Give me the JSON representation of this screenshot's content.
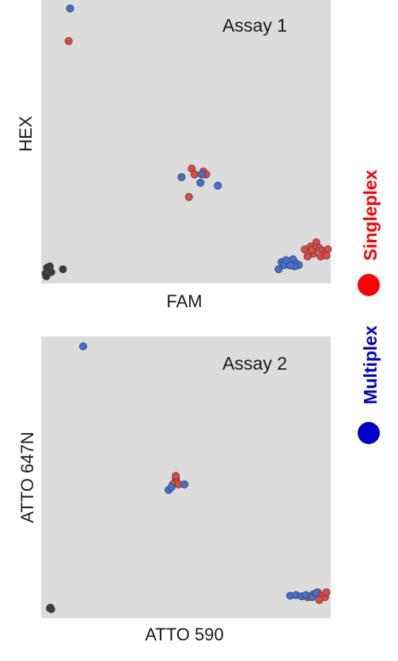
{
  "legend": {
    "items": [
      {
        "label": "Singleplex",
        "color": "#ff0000"
      },
      {
        "label": "Multiplex",
        "color": "#0000cc"
      }
    ]
  },
  "colors": {
    "panel_bg": "#dcdcdc",
    "singleplex": "#e8453c",
    "multiplex": "#3f6fd8",
    "negative": "#3a3a3a",
    "point_edge": "#444444"
  },
  "chart_data": [
    {
      "type": "scatter",
      "title": "Assay 1",
      "xlabel": "FAM",
      "ylabel": "HEX",
      "xlim": [
        0,
        100
      ],
      "ylim": [
        0,
        100
      ],
      "grid": false,
      "series": [
        {
          "name": "Singleplex",
          "color": "#e8453c",
          "points": [
            [
              9.5,
              85.5
            ],
            [
              52,
              40.5
            ],
            [
              53,
              38.5
            ],
            [
              56,
              39.5
            ],
            [
              57,
              38.5
            ],
            [
              51,
              30.5
            ],
            [
              91,
              12
            ],
            [
              93,
              13
            ],
            [
              95,
              14.5
            ],
            [
              96,
              12.5
            ],
            [
              97,
              11.5
            ],
            [
              98,
              10.5
            ],
            [
              99,
              12
            ],
            [
              94,
              10.5
            ],
            [
              92,
              9.5
            ],
            [
              96.5,
              9.5
            ],
            [
              98.5,
              9.8
            ],
            [
              93.5,
              11.8
            ]
          ]
        },
        {
          "name": "Multiplex",
          "color": "#3f6fd8",
          "points": [
            [
              10,
              97
            ],
            [
              48.5,
              37.5
            ],
            [
              55,
              35.5
            ],
            [
              61,
              34.5
            ],
            [
              55.5,
              38.5
            ],
            [
              82,
              5
            ],
            [
              83,
              7.5
            ],
            [
              84,
              6.5
            ],
            [
              85,
              8
            ],
            [
              86,
              7
            ],
            [
              87,
              8.5
            ],
            [
              88,
              7
            ],
            [
              89,
              6.5
            ],
            [
              87.5,
              6
            ],
            [
              86,
              6.3
            ],
            [
              84.5,
              8.2
            ]
          ]
        },
        {
          "color": "#3a3a3a",
          "points": [
            [
              1.5,
              3.5
            ],
            [
              2.5,
              4.5
            ],
            [
              3,
              6
            ],
            [
              2,
              5.5
            ],
            [
              1.8,
              2.5
            ],
            [
              3.5,
              4
            ],
            [
              7.5,
              5
            ]
          ]
        }
      ]
    },
    {
      "type": "scatter",
      "title": "Assay 2",
      "xlabel": "ATTO 590",
      "ylabel": "ATTO 647N",
      "xlim": [
        0,
        100
      ],
      "ylim": [
        0,
        100
      ],
      "grid": false,
      "series": [
        {
          "name": "Singleplex",
          "color": "#e8453c",
          "points": [
            [
              46.5,
              49.5
            ],
            [
              46.5,
              50.5
            ],
            [
              46.8,
              48.2
            ],
            [
              45.5,
              47.5
            ],
            [
              47.5,
              47.5
            ],
            [
              92,
              7.5
            ],
            [
              94,
              8.5
            ],
            [
              95.5,
              9.2
            ],
            [
              97,
              8
            ],
            [
              98,
              7.5
            ],
            [
              96,
              6.5
            ],
            [
              98.5,
              9.2
            ]
          ]
        },
        {
          "name": "Multiplex",
          "color": "#3f6fd8",
          "points": [
            [
              14.5,
              96.5
            ],
            [
              44,
              45.5
            ],
            [
              45,
              46.5
            ],
            [
              49.5,
              47.5
            ],
            [
              86,
              8
            ],
            [
              88,
              8.2
            ],
            [
              90,
              7.8
            ],
            [
              91.5,
              8.2
            ],
            [
              93.5,
              7.5
            ],
            [
              95,
              9
            ]
          ]
        },
        {
          "color": "#3a3a3a",
          "points": [
            [
              3,
              3.5
            ],
            [
              3.5,
              3.2
            ],
            [
              3.2,
              3.8
            ]
          ]
        }
      ]
    }
  ]
}
